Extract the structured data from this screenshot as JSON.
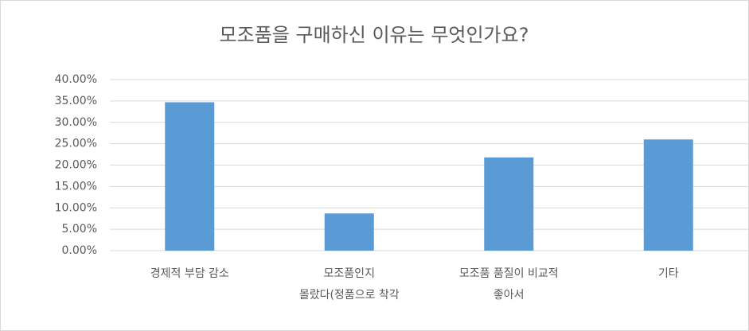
{
  "chart_data": {
    "type": "bar",
    "title": "모조품을 구매하신 이유는 무엇인가요?",
    "categories": [
      "경제적 부담 감소",
      "모조품인지\n몰랐다(정품으로 착각",
      "모조품 품질이 비교적\n좋아서",
      "기타"
    ],
    "values": [
      34.7,
      8.7,
      21.8,
      26.0
    ],
    "color": "#5b9bd5",
    "ylim": [
      0,
      40
    ],
    "yticks": [
      {
        "value": 0,
        "label": "0.00%"
      },
      {
        "value": 5,
        "label": "5.00%"
      },
      {
        "value": 10,
        "label": "10.00%"
      },
      {
        "value": 15,
        "label": "15.00%"
      },
      {
        "value": 20,
        "label": "20.00%"
      },
      {
        "value": 25,
        "label": "25.00%"
      },
      {
        "value": 30,
        "label": "30.00%"
      },
      {
        "value": 35,
        "label": "35.00%"
      },
      {
        "value": 40,
        "label": "40.00%"
      }
    ],
    "grid": true
  }
}
